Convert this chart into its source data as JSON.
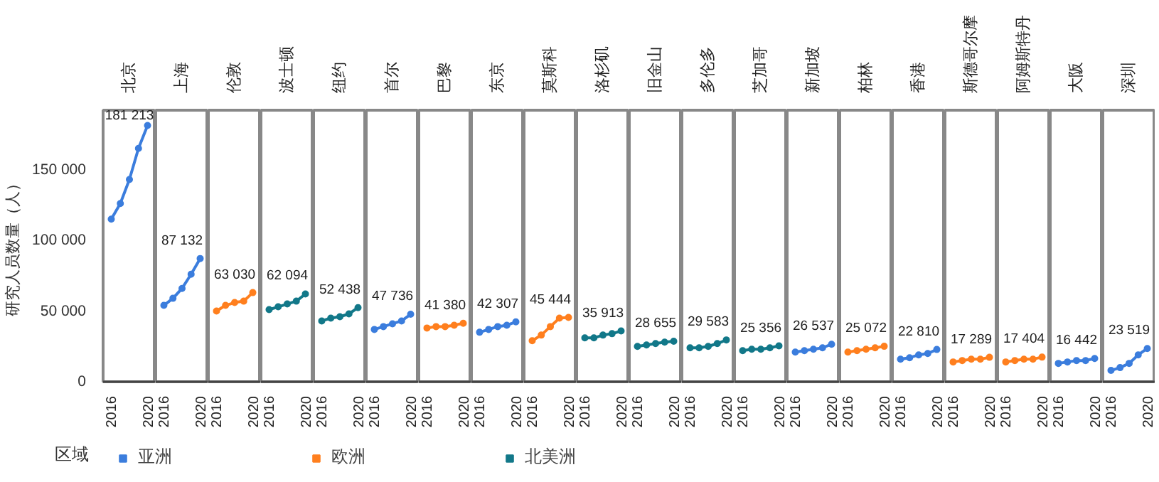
{
  "chart_data": [
    {
      "type": "line",
      "title": "北京",
      "ylabel": "研究人员数量（人）",
      "x": [
        2016,
        2017,
        2018,
        2019,
        2020
      ],
      "xlim": [
        2015.1,
        2020.9
      ],
      "xticks": [
        2016,
        2020
      ],
      "ylim": [
        0,
        192000
      ],
      "yticks": [
        0,
        {
          "value": 50000,
          "label": "50 000"
        },
        {
          "value": 100000,
          "label": "100 000"
        },
        {
          "value": 150000,
          "label": "150 000"
        }
      ],
      "marker": "circle",
      "legend": "bottom",
      "legend_title": "区域",
      "series": [
        {
          "name": "亚洲",
          "color": "#3b7ddd",
          "values": [
            115000,
            126000,
            143000,
            165000,
            181213
          ],
          "value_labels": [
            null,
            null,
            null,
            null,
            "181 213"
          ]
        }
      ]
    },
    {
      "type": "line",
      "title": "上海",
      "x": [
        2016,
        2017,
        2018,
        2019,
        2020
      ],
      "xlim": [
        2015.1,
        2020.9
      ],
      "xticks": [
        2016,
        2020
      ],
      "ylim": [
        0,
        192000
      ],
      "tick_labels": "x",
      "marker": "circle",
      "series": [
        {
          "color": "#3b7ddd",
          "values": [
            54000,
            59000,
            66000,
            76000,
            87132
          ],
          "value_labels": [
            null,
            null,
            null,
            null,
            "87 132"
          ]
        }
      ]
    },
    {
      "type": "line",
      "title": "伦敦",
      "x": [
        2016,
        2017,
        2018,
        2019,
        2020
      ],
      "xlim": [
        2015.1,
        2020.9
      ],
      "xticks": [
        2016,
        2020
      ],
      "ylim": [
        0,
        192000
      ],
      "tick_labels": "x",
      "marker": "circle",
      "series": [
        {
          "name": "欧洲",
          "color": "#ff7f1e",
          "values": [
            50000,
            54000,
            56000,
            57000,
            63030
          ],
          "value_labels": [
            null,
            null,
            null,
            null,
            "63 030"
          ]
        }
      ]
    },
    {
      "type": "line",
      "title": "波士顿",
      "x": [
        2016,
        2017,
        2018,
        2019,
        2020
      ],
      "xlim": [
        2015.1,
        2020.9
      ],
      "xticks": [
        2016,
        2020
      ],
      "ylim": [
        0,
        192000
      ],
      "tick_labels": "x",
      "marker": "circle",
      "series": [
        {
          "name": "北美洲",
          "color": "#127889",
          "values": [
            51000,
            53000,
            55000,
            57000,
            62094
          ],
          "value_labels": [
            null,
            null,
            null,
            null,
            "62 094"
          ]
        }
      ]
    },
    {
      "type": "line",
      "title": "纽约",
      "x": [
        2016,
        2017,
        2018,
        2019,
        2020
      ],
      "xlim": [
        2015.1,
        2020.9
      ],
      "xticks": [
        2016,
        2020
      ],
      "ylim": [
        0,
        192000
      ],
      "tick_labels": "x",
      "marker": "circle",
      "series": [
        {
          "color": "#127889",
          "values": [
            43000,
            45000,
            46000,
            48000,
            52438
          ],
          "value_labels": [
            null,
            null,
            null,
            null,
            "52 438"
          ]
        }
      ]
    },
    {
      "type": "line",
      "title": "首尔",
      "x": [
        2016,
        2017,
        2018,
        2019,
        2020
      ],
      "xlim": [
        2015.1,
        2020.9
      ],
      "xticks": [
        2016,
        2020
      ],
      "ylim": [
        0,
        192000
      ],
      "tick_labels": "x",
      "marker": "circle",
      "series": [
        {
          "color": "#3b7ddd",
          "values": [
            37000,
            39000,
            41000,
            43000,
            47736
          ],
          "value_labels": [
            null,
            null,
            null,
            null,
            "47 736"
          ]
        }
      ]
    },
    {
      "type": "line",
      "title": "巴黎",
      "x": [
        2016,
        2017,
        2018,
        2019,
        2020
      ],
      "xlim": [
        2015.1,
        2020.9
      ],
      "xticks": [
        2016,
        2020
      ],
      "ylim": [
        0,
        192000
      ],
      "tick_labels": "x",
      "marker": "circle",
      "series": [
        {
          "color": "#ff7f1e",
          "values": [
            38000,
            39000,
            39000,
            40000,
            41380
          ],
          "value_labels": [
            null,
            null,
            null,
            null,
            "41 380"
          ]
        }
      ]
    },
    {
      "type": "line",
      "title": "东京",
      "x": [
        2016,
        2017,
        2018,
        2019,
        2020
      ],
      "xlim": [
        2015.1,
        2020.9
      ],
      "xticks": [
        2016,
        2020
      ],
      "ylim": [
        0,
        192000
      ],
      "tick_labels": "x",
      "marker": "circle",
      "series": [
        {
          "color": "#3b7ddd",
          "values": [
            35000,
            37000,
            39000,
            40000,
            42307
          ],
          "value_labels": [
            null,
            null,
            null,
            null,
            "42 307"
          ]
        }
      ]
    },
    {
      "type": "line",
      "title": "莫斯科",
      "x": [
        2016,
        2017,
        2018,
        2019,
        2020
      ],
      "xlim": [
        2015.1,
        2020.9
      ],
      "xticks": [
        2016,
        2020
      ],
      "ylim": [
        0,
        192000
      ],
      "tick_labels": "x",
      "marker": "circle",
      "series": [
        {
          "color": "#ff7f1e",
          "values": [
            29000,
            33000,
            39000,
            45000,
            45444
          ],
          "value_labels": [
            null,
            null,
            null,
            null,
            "45 444"
          ]
        }
      ]
    },
    {
      "type": "line",
      "title": "洛杉矶",
      "x": [
        2016,
        2017,
        2018,
        2019,
        2020
      ],
      "xlim": [
        2015.1,
        2020.9
      ],
      "xticks": [
        2016,
        2020
      ],
      "ylim": [
        0,
        192000
      ],
      "tick_labels": "x",
      "marker": "circle",
      "series": [
        {
          "color": "#127889",
          "values": [
            31000,
            31000,
            33000,
            34000,
            35913
          ],
          "value_labels": [
            null,
            null,
            null,
            null,
            "35 913"
          ]
        }
      ]
    },
    {
      "type": "line",
      "title": "旧金山",
      "x": [
        2016,
        2017,
        2018,
        2019,
        2020
      ],
      "xlim": [
        2015.1,
        2020.9
      ],
      "xticks": [
        2016,
        2020
      ],
      "ylim": [
        0,
        192000
      ],
      "tick_labels": "x",
      "marker": "circle",
      "series": [
        {
          "color": "#127889",
          "values": [
            25000,
            26000,
            27000,
            28000,
            28655
          ],
          "value_labels": [
            null,
            null,
            null,
            null,
            "28 655"
          ]
        }
      ]
    },
    {
      "type": "line",
      "title": "多伦多",
      "x": [
        2016,
        2017,
        2018,
        2019,
        2020
      ],
      "xlim": [
        2015.1,
        2020.9
      ],
      "xticks": [
        2016,
        2020
      ],
      "ylim": [
        0,
        192000
      ],
      "tick_labels": "x",
      "marker": "circle",
      "series": [
        {
          "color": "#127889",
          "values": [
            24000,
            24000,
            25000,
            27000,
            29583
          ],
          "value_labels": [
            null,
            null,
            null,
            null,
            "29 583"
          ]
        }
      ]
    },
    {
      "type": "line",
      "title": "芝加哥",
      "x": [
        2016,
        2017,
        2018,
        2019,
        2020
      ],
      "xlim": [
        2015.1,
        2020.9
      ],
      "xticks": [
        2016,
        2020
      ],
      "ylim": [
        0,
        192000
      ],
      "tick_labels": "x",
      "marker": "circle",
      "series": [
        {
          "color": "#127889",
          "values": [
            22000,
            23000,
            23000,
            24000,
            25356
          ],
          "value_labels": [
            null,
            null,
            null,
            null,
            "25 356"
          ]
        }
      ]
    },
    {
      "type": "line",
      "title": "新加坡",
      "x": [
        2016,
        2017,
        2018,
        2019,
        2020
      ],
      "xlim": [
        2015.1,
        2020.9
      ],
      "xticks": [
        2016,
        2020
      ],
      "ylim": [
        0,
        192000
      ],
      "tick_labels": "x",
      "marker": "circle",
      "series": [
        {
          "color": "#3b7ddd",
          "values": [
            21000,
            22000,
            23000,
            24000,
            26537
          ],
          "value_labels": [
            null,
            null,
            null,
            null,
            "26 537"
          ]
        }
      ]
    },
    {
      "type": "line",
      "title": "柏林",
      "x": [
        2016,
        2017,
        2018,
        2019,
        2020
      ],
      "xlim": [
        2015.1,
        2020.9
      ],
      "xticks": [
        2016,
        2020
      ],
      "ylim": [
        0,
        192000
      ],
      "tick_labels": "x",
      "marker": "circle",
      "series": [
        {
          "color": "#ff7f1e",
          "values": [
            21000,
            22000,
            23000,
            24000,
            25072
          ],
          "value_labels": [
            null,
            null,
            null,
            null,
            "25 072"
          ]
        }
      ]
    },
    {
      "type": "line",
      "title": "香港",
      "x": [
        2016,
        2017,
        2018,
        2019,
        2020
      ],
      "xlim": [
        2015.1,
        2020.9
      ],
      "xticks": [
        2016,
        2020
      ],
      "ylim": [
        0,
        192000
      ],
      "tick_labels": "x",
      "marker": "circle",
      "series": [
        {
          "color": "#3b7ddd",
          "values": [
            16000,
            17000,
            19000,
            20000,
            22810
          ],
          "value_labels": [
            null,
            null,
            null,
            null,
            "22 810"
          ]
        }
      ]
    },
    {
      "type": "line",
      "title": "斯德哥尔摩",
      "x": [
        2016,
        2017,
        2018,
        2019,
        2020
      ],
      "xlim": [
        2015.1,
        2020.9
      ],
      "xticks": [
        2016,
        2020
      ],
      "ylim": [
        0,
        192000
      ],
      "tick_labels": "x",
      "marker": "circle",
      "series": [
        {
          "color": "#ff7f1e",
          "values": [
            14000,
            15000,
            16000,
            16000,
            17289
          ],
          "value_labels": [
            null,
            null,
            null,
            null,
            "17 289"
          ]
        }
      ]
    },
    {
      "type": "line",
      "title": "阿姆斯特丹",
      "x": [
        2016,
        2017,
        2018,
        2019,
        2020
      ],
      "xlim": [
        2015.1,
        2020.9
      ],
      "xticks": [
        2016,
        2020
      ],
      "ylim": [
        0,
        192000
      ],
      "tick_labels": "x",
      "marker": "circle",
      "series": [
        {
          "color": "#ff7f1e",
          "values": [
            14000,
            15000,
            16000,
            16000,
            17404
          ],
          "value_labels": [
            null,
            null,
            null,
            null,
            "17 404"
          ]
        }
      ]
    },
    {
      "type": "line",
      "title": "大阪",
      "x": [
        2016,
        2017,
        2018,
        2019,
        2020
      ],
      "xlim": [
        2015.1,
        2020.9
      ],
      "xticks": [
        2016,
        2020
      ],
      "ylim": [
        0,
        192000
      ],
      "tick_labels": "x",
      "marker": "circle",
      "series": [
        {
          "color": "#3b7ddd",
          "values": [
            13000,
            14000,
            15000,
            15000,
            16442
          ],
          "value_labels": [
            null,
            null,
            null,
            null,
            "16 442"
          ]
        }
      ]
    },
    {
      "type": "line",
      "title": "深圳",
      "x": [
        2016,
        2017,
        2018,
        2019,
        2020
      ],
      "xlim": [
        2015.1,
        2020.9
      ],
      "xticks": [
        2016,
        2020
      ],
      "ylim": [
        0,
        192000
      ],
      "tick_labels": "x",
      "marker": "circle",
      "series": [
        {
          "color": "#3b7ddd",
          "values": [
            8000,
            10000,
            13000,
            19000,
            23519
          ],
          "value_labels": [
            null,
            null,
            null,
            null,
            "23 519"
          ]
        }
      ]
    }
  ]
}
